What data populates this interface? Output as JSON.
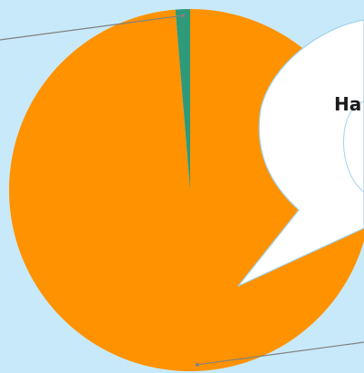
{
  "chart_data": {
    "type": "pie",
    "title": "",
    "slices": [
      {
        "label": "",
        "value": 98.7,
        "color": "#ff9200"
      },
      {
        "label": "",
        "value": 1.3,
        "color": "#2e9a7a"
      }
    ],
    "legend": "none"
  },
  "callout": {
    "text": "Ha"
  },
  "colors": {
    "background": "#c8e9f9",
    "leader_line": "#808080",
    "callout_fill": "#ffffff",
    "callout_stroke": "#9fd3ec"
  }
}
